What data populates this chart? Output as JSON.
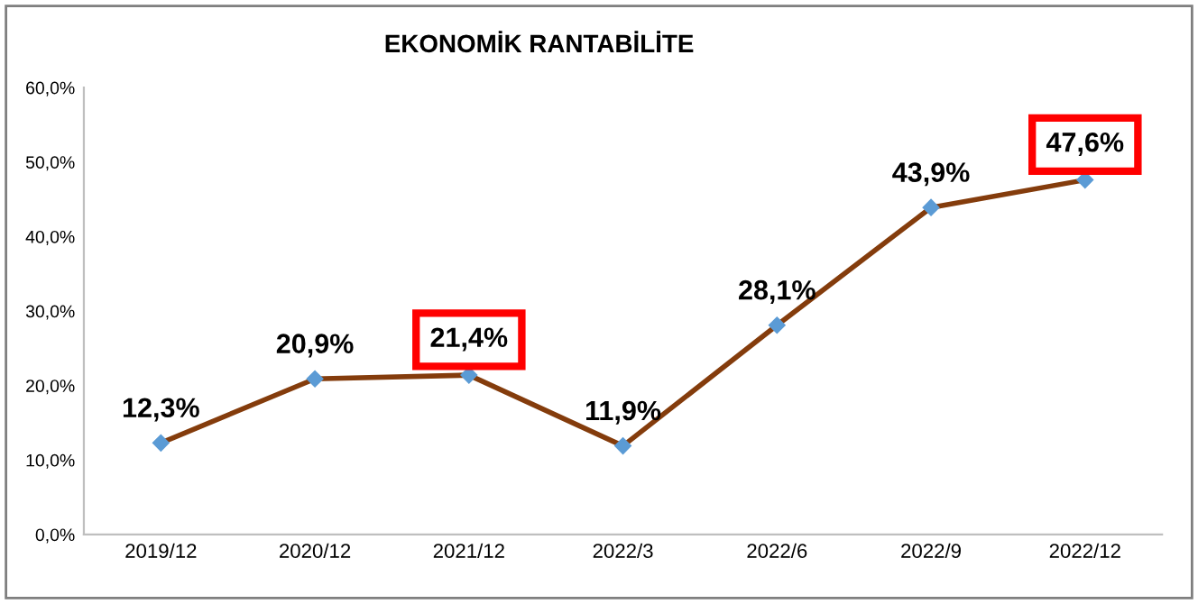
{
  "chart_data": {
    "type": "line",
    "title": "EKONOMİK RANTABİLİTE",
    "categories": [
      "2019/12",
      "2020/12",
      "2021/12",
      "2022/3",
      "2022/6",
      "2022/9",
      "2022/12"
    ],
    "series": [
      {
        "color": "#843c0c",
        "values": [
          12.3,
          20.9,
          21.4,
          11.9,
          28.1,
          43.9,
          47.6
        ],
        "value_labels": [
          "12,3%",
          "20,9%",
          null,
          "11,9%",
          "28,1%",
          "43,9%",
          null
        ]
      }
    ],
    "annotations": [
      {
        "text": "21,4%",
        "x": "2021/12",
        "y": 21.4
      },
      {
        "text": "47,6%",
        "x": "2022/12",
        "y": 47.6
      }
    ],
    "ylim": [
      0,
      60
    ],
    "yticks": [
      {
        "value": 0,
        "label": "0,0%"
      },
      {
        "value": 10,
        "label": "10,0%"
      },
      {
        "value": 20,
        "label": "20,0%"
      },
      {
        "value": 30,
        "label": "30,0%"
      },
      {
        "value": 40,
        "label": "40,0%"
      },
      {
        "value": 50,
        "label": "50,0%"
      },
      {
        "value": 60,
        "label": "60,0%"
      }
    ],
    "grid": false,
    "marker": "diamond",
    "line_style": "solid",
    "legend": false
  }
}
